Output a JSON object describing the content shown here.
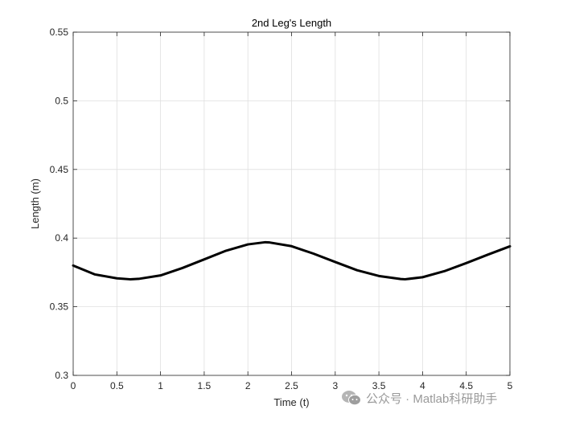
{
  "chart_data": {
    "type": "line",
    "title": "2nd Leg's Length",
    "xlabel": "Time (t)",
    "ylabel": "Length (m)",
    "xlim": [
      0,
      5
    ],
    "ylim": [
      0.3,
      0.55
    ],
    "x_ticks": [
      0,
      0.5,
      1,
      1.5,
      2,
      2.5,
      3,
      3.5,
      4,
      4.5,
      5
    ],
    "x_tick_labels": [
      "0",
      "0.5",
      "1",
      "1.5",
      "2",
      "2.5",
      "3",
      "3.5",
      "4",
      "4.5",
      "5"
    ],
    "y_ticks": [
      0.3,
      0.35,
      0.4,
      0.45,
      0.5,
      0.55
    ],
    "y_tick_labels": [
      "0.3",
      "0.35",
      "0.4",
      "0.45",
      "0.5",
      "0.55"
    ],
    "grid": true,
    "series": [
      {
        "color": "#000000",
        "x": [
          0,
          0.25,
          0.5,
          0.65,
          0.75,
          1.0,
          1.25,
          1.5,
          1.75,
          2.0,
          2.2,
          2.25,
          2.5,
          2.75,
          3.0,
          3.25,
          3.5,
          3.75,
          3.8,
          4.0,
          4.25,
          4.5,
          4.75,
          5.0
        ],
        "y": [
          0.38,
          0.3735,
          0.3707,
          0.37,
          0.3703,
          0.3728,
          0.3782,
          0.3845,
          0.3908,
          0.3954,
          0.397,
          0.3968,
          0.3941,
          0.3887,
          0.3826,
          0.3766,
          0.3724,
          0.3702,
          0.37,
          0.3715,
          0.3759,
          0.3818,
          0.388,
          0.394
        ]
      }
    ]
  },
  "watermark": {
    "icon": "wechat-icon",
    "text": "公众号 · Matlab科研助手"
  }
}
